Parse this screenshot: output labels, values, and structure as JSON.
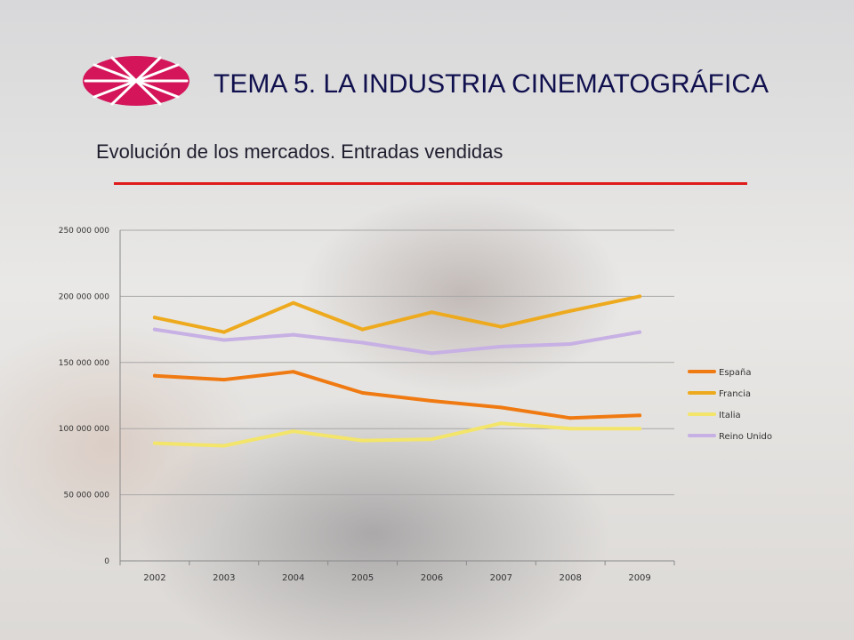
{
  "slide": {
    "title": "TEMA 5. LA INDUSTRIA CINEMATOGRÁFICA",
    "subtitle": "Evolución de los mercados. Entradas vendidas",
    "logo_color": "#d4155a",
    "rule_color": "#e01b1b"
  },
  "chart_data": {
    "type": "line",
    "title": "",
    "xlabel": "",
    "ylabel": "",
    "x": [
      "2002",
      "2003",
      "2004",
      "2005",
      "2006",
      "2007",
      "2008",
      "2009"
    ],
    "ylim": [
      0,
      250000000
    ],
    "yticks": [
      0,
      50000000,
      100000000,
      150000000,
      200000000,
      250000000
    ],
    "ytick_labels": [
      "0",
      "50 000 000",
      "100 000 000",
      "150 000 000",
      "200 000 000",
      "250 000 000"
    ],
    "grid": "horizontal",
    "legend_position": "right",
    "series": [
      {
        "name": "España",
        "color": "#f07a12",
        "values": [
          140000000,
          137000000,
          143000000,
          127000000,
          121000000,
          116000000,
          108000000,
          110000000
        ]
      },
      {
        "name": "Francia",
        "color": "#eeaa1e",
        "values": [
          184000000,
          173000000,
          195000000,
          175000000,
          188000000,
          177000000,
          189000000,
          200000000
        ]
      },
      {
        "name": "Italia",
        "color": "#f3e46a",
        "values": [
          89000000,
          87000000,
          98000000,
          91000000,
          92000000,
          104000000,
          100000000,
          100000000
        ]
      },
      {
        "name": "Reino Unido",
        "color": "#c7b0e4",
        "values": [
          175000000,
          167000000,
          171000000,
          165000000,
          157000000,
          162000000,
          164000000,
          173000000
        ]
      }
    ]
  }
}
